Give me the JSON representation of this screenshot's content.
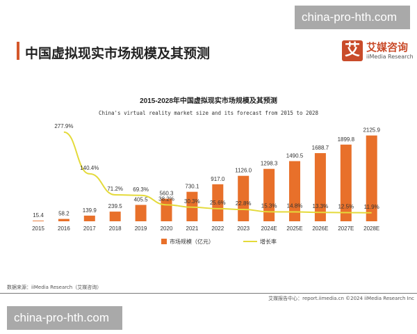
{
  "watermark": "china-pro-hth.com",
  "page_title": "中国虚拟现实市场规模及其预测",
  "logo": {
    "icon": "艾",
    "cn": "艾媒咨询",
    "en": "iiMedia Research"
  },
  "source": "数据来源：iiMedia Research（艾媒咨询）",
  "footer": "艾媒报告中心：report.iimedia.cn   ©2024   iiMedia Research  Inc",
  "chart_data": {
    "type": "bar+line",
    "title": "2015-2028年中国虚拟现实市场规模及其预测",
    "subtitle": "China's virtual reality market size and its forecast from 2015 to 2028",
    "categories": [
      "2015",
      "2016",
      "2017",
      "2018",
      "2019",
      "2020",
      "2021",
      "2022",
      "2023",
      "2024E",
      "2025E",
      "2026E",
      "2027E",
      "2028E"
    ],
    "series": [
      {
        "name": "市场规模（亿元）",
        "type": "bar",
        "color": "#e8702a",
        "values": [
          15.4,
          58.2,
          139.9,
          239.5,
          405.5,
          560.3,
          730.1,
          917.0,
          1126.0,
          1298.3,
          1490.5,
          1688.7,
          1899.8,
          2125.9
        ],
        "labels": [
          "15.4",
          "58.2",
          "139.9",
          "239.5",
          "405.5",
          "560.3",
          "730.1",
          "917.0",
          "1126.0",
          "1298.3",
          "1490.5",
          "1688.7",
          "1899.8",
          "2125.9"
        ]
      },
      {
        "name": "增长率",
        "type": "line",
        "color": "#e4da3a",
        "values": [
          null,
          277.9,
          140.4,
          71.2,
          69.3,
          38.2,
          30.3,
          25.6,
          22.8,
          15.3,
          14.8,
          13.3,
          12.5,
          11.9
        ],
        "labels": [
          "",
          "277.9%",
          "140.4%",
          "71.2%",
          "69.3%",
          "38.2%",
          "30.3%",
          "25.6%",
          "22.8%",
          "15.3%",
          "14.8%",
          "13.3%",
          "12.5%",
          "11.9%"
        ]
      }
    ],
    "legend": "bottom"
  }
}
